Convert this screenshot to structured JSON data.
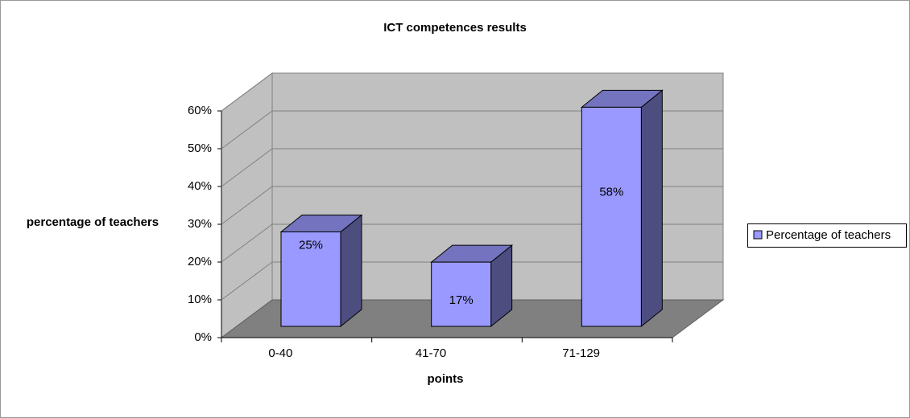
{
  "chart_data": {
    "type": "bar3d",
    "title": "ICT competences results",
    "x_label": "points",
    "y_label": "percentage of teachers",
    "categories": [
      "0-40",
      "41-70",
      "71-129"
    ],
    "series": [
      {
        "name": "Percentage of teachers",
        "color": "#9999ff",
        "values": [
          25,
          17,
          58
        ],
        "value_labels": [
          "25%",
          "17%",
          "58%"
        ]
      }
    ],
    "ylim": [
      0,
      60
    ],
    "yticks": [
      {
        "value": 0,
        "label": "0%"
      },
      {
        "value": 10,
        "label": "10%"
      },
      {
        "value": 20,
        "label": "20%"
      },
      {
        "value": 30,
        "label": "30%"
      },
      {
        "value": 40,
        "label": "40%"
      },
      {
        "value": 50,
        "label": "50%"
      },
      {
        "value": 60,
        "label": "60%"
      }
    ],
    "grid": true,
    "legend": "right"
  }
}
